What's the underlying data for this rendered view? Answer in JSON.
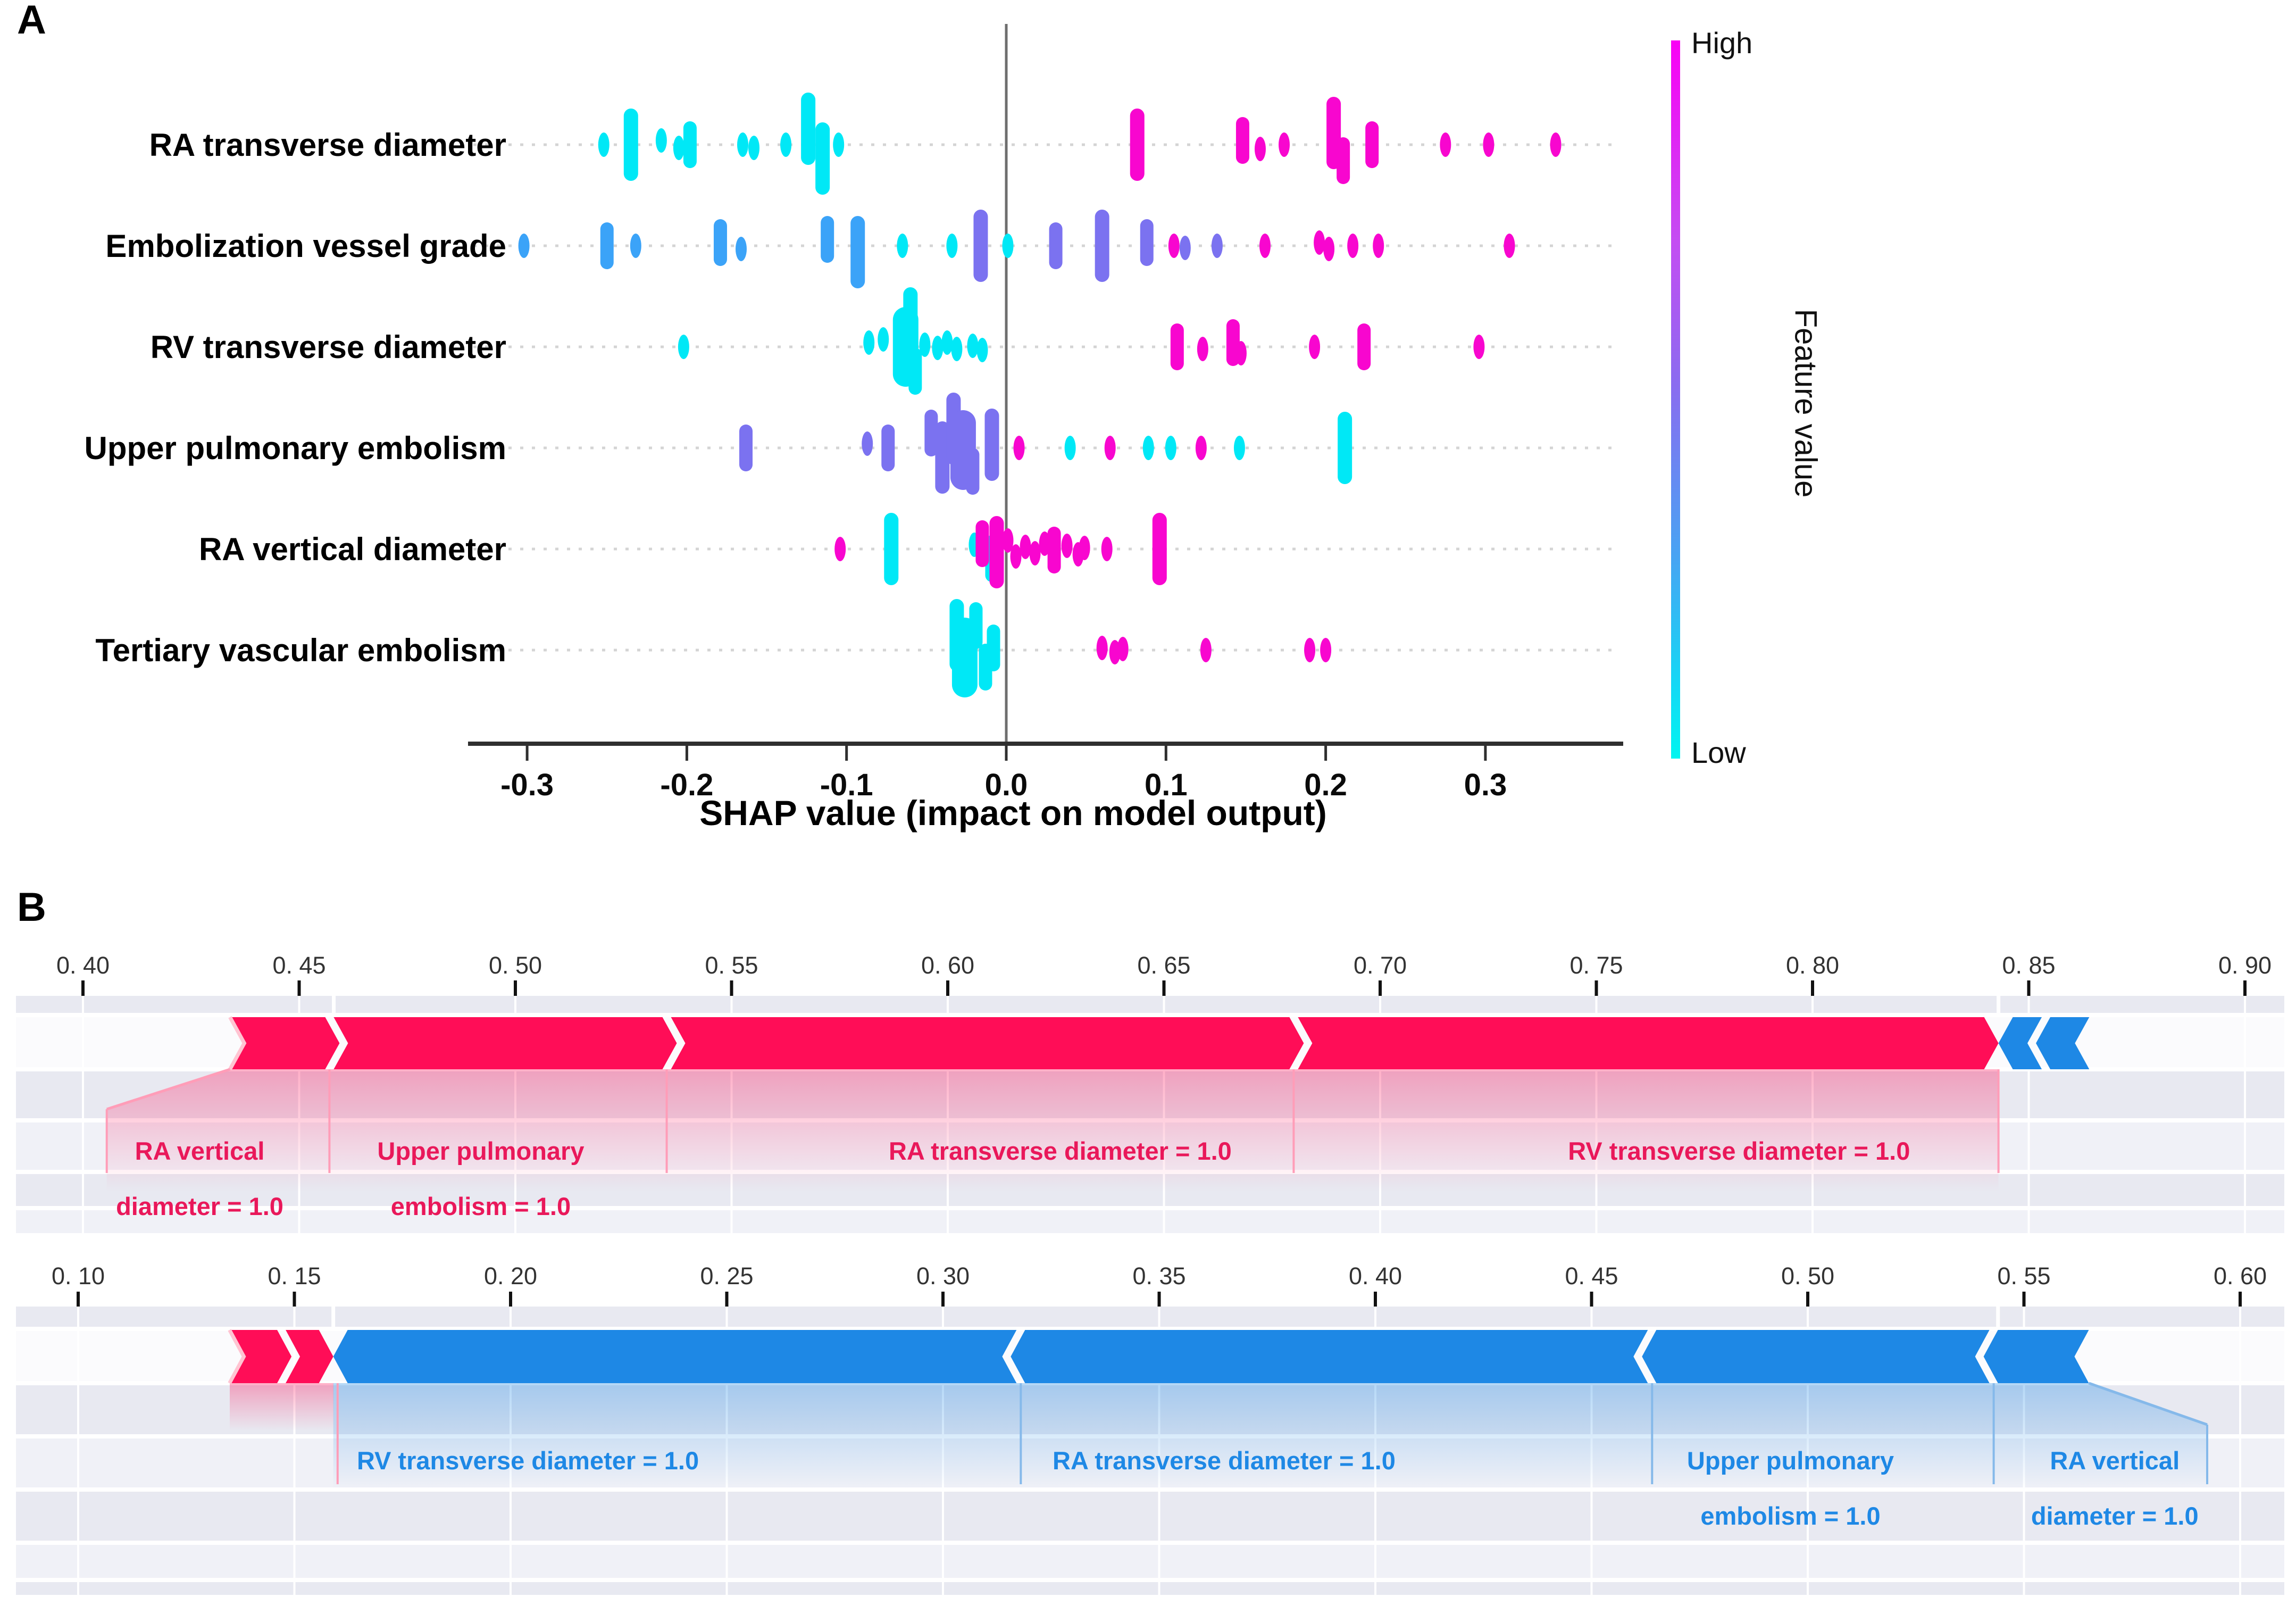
{
  "figure": {
    "panel_a_label": "A",
    "panel_b_label": "B"
  },
  "chart_data": [
    {
      "type": "scatter",
      "subtype": "shap-beeswarm-summary",
      "title": "",
      "xlabel": "SHAP value (impact on model output)",
      "ylabel": "",
      "xlim": [
        -0.35,
        0.39
      ],
      "grid": "dotted-row-lines",
      "x_ticks": [
        -0.3,
        -0.2,
        -0.1,
        0.0,
        0.1,
        0.2,
        0.3
      ],
      "x_tick_labels": [
        "-0.3",
        "-0.2",
        "-0.1",
        "0.0",
        "0.1",
        "0.2",
        "0.3"
      ],
      "features": [
        "RA transverse diameter",
        "Embolization vessel grade",
        "RV transverse diameter",
        "Upper pulmonary embolism",
        "RA vertical diameter",
        "Tertiary vascular embolism"
      ],
      "colorbar": {
        "label": "Feature value",
        "high": "High",
        "low": "Low",
        "position": "right"
      },
      "colors": {
        "cyan": "#00e8f6",
        "blue": "#3ba3f8",
        "purple": "#7b72f0",
        "magenta": "#f806cf"
      },
      "points_format": [
        "feature_index",
        "shap_value",
        "color",
        "size",
        "dy_jitter_px"
      ],
      "points": [
        [
          0,
          -0.252,
          "cyan",
          "s",
          0
        ],
        [
          0,
          -0.235,
          "cyan",
          "t",
          0
        ],
        [
          0,
          -0.216,
          "cyan",
          "s",
          -8
        ],
        [
          0,
          -0.205,
          "cyan",
          "s",
          6
        ],
        [
          0,
          -0.198,
          "cyan",
          "m",
          0
        ],
        [
          0,
          -0.165,
          "cyan",
          "s",
          0
        ],
        [
          0,
          -0.158,
          "cyan",
          "s",
          6
        ],
        [
          0,
          -0.138,
          "cyan",
          "s",
          0
        ],
        [
          0,
          -0.124,
          "cyan",
          "t",
          -30
        ],
        [
          0,
          -0.115,
          "cyan",
          "t",
          26
        ],
        [
          0,
          -0.105,
          "cyan",
          "s",
          0
        ],
        [
          0,
          0.082,
          "magenta",
          "t",
          0
        ],
        [
          0,
          0.148,
          "magenta",
          "m",
          -8
        ],
        [
          0,
          0.159,
          "magenta",
          "s",
          8
        ],
        [
          0,
          0.174,
          "magenta",
          "s",
          0
        ],
        [
          0,
          0.205,
          "magenta",
          "t",
          -22
        ],
        [
          0,
          0.211,
          "magenta",
          "m",
          30
        ],
        [
          0,
          0.229,
          "magenta",
          "m",
          0
        ],
        [
          0,
          0.275,
          "magenta",
          "s",
          0
        ],
        [
          0,
          0.302,
          "magenta",
          "s",
          0
        ],
        [
          0,
          0.344,
          "magenta",
          "s",
          0
        ],
        [
          1,
          -0.302,
          "blue",
          "s",
          0
        ],
        [
          1,
          -0.25,
          "blue",
          "m",
          0
        ],
        [
          1,
          -0.232,
          "blue",
          "s",
          0
        ],
        [
          1,
          -0.179,
          "blue",
          "m",
          -6
        ],
        [
          1,
          -0.166,
          "blue",
          "s",
          6
        ],
        [
          1,
          -0.112,
          "blue",
          "m",
          -12
        ],
        [
          1,
          -0.093,
          "blue",
          "t",
          12
        ],
        [
          1,
          -0.065,
          "cyan",
          "s",
          0
        ],
        [
          1,
          -0.034,
          "cyan",
          "s",
          0
        ],
        [
          1,
          0.001,
          "cyan",
          "s",
          0
        ],
        [
          1,
          -0.016,
          "purple",
          "t",
          0
        ],
        [
          1,
          0.031,
          "purple",
          "m",
          0
        ],
        [
          1,
          0.06,
          "purple",
          "t",
          0
        ],
        [
          1,
          0.088,
          "purple",
          "m",
          -6
        ],
        [
          1,
          0.112,
          "purple",
          "s",
          4
        ],
        [
          1,
          0.132,
          "purple",
          "s",
          0
        ],
        [
          1,
          0.105,
          "magenta",
          "s",
          0
        ],
        [
          1,
          0.162,
          "magenta",
          "s",
          0
        ],
        [
          1,
          0.196,
          "magenta",
          "s",
          -6
        ],
        [
          1,
          0.202,
          "magenta",
          "s",
          6
        ],
        [
          1,
          0.217,
          "magenta",
          "s",
          0
        ],
        [
          1,
          0.233,
          "magenta",
          "s",
          0
        ],
        [
          1,
          0.315,
          "magenta",
          "s",
          0
        ],
        [
          2,
          -0.202,
          "cyan",
          "s",
          0
        ],
        [
          2,
          -0.086,
          "cyan",
          "s",
          -8
        ],
        [
          2,
          -0.077,
          "cyan",
          "s",
          -14
        ],
        [
          2,
          -0.063,
          "cyan",
          "xl",
          0
        ],
        [
          2,
          -0.06,
          "cyan",
          "t",
          -44
        ],
        [
          2,
          -0.057,
          "cyan",
          "m",
          46
        ],
        [
          2,
          -0.051,
          "cyan",
          "s",
          -4
        ],
        [
          2,
          -0.043,
          "cyan",
          "s",
          2
        ],
        [
          2,
          -0.037,
          "cyan",
          "s",
          -8
        ],
        [
          2,
          -0.031,
          "cyan",
          "s",
          4
        ],
        [
          2,
          -0.021,
          "cyan",
          "s",
          -2
        ],
        [
          2,
          -0.015,
          "cyan",
          "s",
          6
        ],
        [
          2,
          0.107,
          "magenta",
          "m",
          0
        ],
        [
          2,
          0.123,
          "magenta",
          "s",
          4
        ],
        [
          2,
          0.142,
          "magenta",
          "m",
          -8
        ],
        [
          2,
          0.147,
          "magenta",
          "s",
          12
        ],
        [
          2,
          0.193,
          "magenta",
          "s",
          0
        ],
        [
          2,
          0.224,
          "magenta",
          "m",
          0
        ],
        [
          2,
          0.296,
          "magenta",
          "s",
          0
        ],
        [
          3,
          -0.163,
          "purple",
          "m",
          0
        ],
        [
          3,
          -0.087,
          "purple",
          "s",
          -8
        ],
        [
          3,
          -0.074,
          "purple",
          "m",
          0
        ],
        [
          3,
          -0.047,
          "purple",
          "m",
          -28
        ],
        [
          3,
          -0.04,
          "purple",
          "t",
          18
        ],
        [
          3,
          -0.033,
          "purple",
          "t",
          -36
        ],
        [
          3,
          -0.027,
          "purple",
          "xl",
          4
        ],
        [
          3,
          -0.021,
          "purple",
          "m",
          44
        ],
        [
          3,
          -0.009,
          "purple",
          "t",
          -6
        ],
        [
          3,
          0.008,
          "magenta",
          "s",
          0
        ],
        [
          3,
          0.065,
          "magenta",
          "s",
          0
        ],
        [
          3,
          0.122,
          "magenta",
          "s",
          0
        ],
        [
          3,
          0.04,
          "cyan",
          "s",
          0
        ],
        [
          3,
          0.089,
          "cyan",
          "s",
          0
        ],
        [
          3,
          0.103,
          "cyan",
          "s",
          0
        ],
        [
          3,
          0.146,
          "cyan",
          "s",
          0
        ],
        [
          3,
          0.212,
          "cyan",
          "t",
          0
        ],
        [
          4,
          -0.072,
          "cyan",
          "t",
          0
        ],
        [
          4,
          -0.02,
          "cyan",
          "s",
          -8
        ],
        [
          4,
          -0.009,
          "cyan",
          "m",
          18
        ],
        [
          4,
          -0.104,
          "magenta",
          "s",
          0
        ],
        [
          4,
          -0.015,
          "magenta",
          "m",
          -10
        ],
        [
          4,
          -0.006,
          "magenta",
          "t",
          6
        ],
        [
          4,
          0.001,
          "magenta",
          "s",
          -16
        ],
        [
          4,
          0.006,
          "magenta",
          "s",
          14
        ],
        [
          4,
          0.012,
          "magenta",
          "s",
          -4
        ],
        [
          4,
          0.018,
          "magenta",
          "s",
          8
        ],
        [
          4,
          0.024,
          "magenta",
          "s",
          -10
        ],
        [
          4,
          0.03,
          "magenta",
          "m",
          2
        ],
        [
          4,
          0.038,
          "magenta",
          "s",
          -6
        ],
        [
          4,
          0.045,
          "magenta",
          "s",
          10
        ],
        [
          4,
          0.049,
          "magenta",
          "s",
          -2
        ],
        [
          4,
          0.063,
          "magenta",
          "s",
          0
        ],
        [
          4,
          0.096,
          "magenta",
          "t",
          0
        ],
        [
          5,
          -0.031,
          "cyan",
          "t",
          -28
        ],
        [
          5,
          -0.026,
          "cyan",
          "xl",
          14
        ],
        [
          5,
          -0.019,
          "cyan",
          "m",
          -46
        ],
        [
          5,
          -0.013,
          "cyan",
          "m",
          32
        ],
        [
          5,
          -0.008,
          "cyan",
          "m",
          -4
        ],
        [
          5,
          0.06,
          "magenta",
          "s",
          -4
        ],
        [
          5,
          0.068,
          "magenta",
          "s",
          4
        ],
        [
          5,
          0.073,
          "magenta",
          "s",
          -2
        ],
        [
          5,
          0.125,
          "magenta",
          "s",
          0
        ],
        [
          5,
          0.19,
          "magenta",
          "s",
          0
        ],
        [
          5,
          0.2,
          "magenta",
          "s",
          0
        ]
      ]
    },
    {
      "type": "area",
      "subtype": "shap-force-plot",
      "axis_range": [
        0.4,
        0.9
      ],
      "tick_values": [
        0.4,
        0.45,
        0.5,
        0.55,
        0.6,
        0.65,
        0.7,
        0.75,
        0.8,
        0.85,
        0.9
      ],
      "tick_labels": [
        "0. 40",
        "0. 45",
        "0. 50",
        "0. 55",
        "0. 60",
        "0. 65",
        "0. 70",
        "0. 75",
        "0. 80",
        "0. 85",
        "0. 90"
      ],
      "base_value": 0.458,
      "output_value": 0.843,
      "increase_color": "#ff0d57",
      "decrease_color": "#1e88e5",
      "segments": [
        {
          "feature": "RA vertical diameter = 1.0",
          "from": 0.434,
          "to": 0.457,
          "color": "red"
        },
        {
          "feature": "Upper pulmonary embolism = 1.0",
          "from": 0.457,
          "to": 0.535,
          "color": "red"
        },
        {
          "feature": "RA transverse diameter = 1.0",
          "from": 0.535,
          "to": 0.68,
          "color": "red"
        },
        {
          "feature": "RV transverse diameter = 1.0",
          "from": 0.68,
          "to": 0.843,
          "color": "red"
        },
        {
          "feature": "",
          "from": 0.843,
          "to": 0.854,
          "color": "blue"
        },
        {
          "feature": "",
          "from": 0.854,
          "to": 0.864,
          "color": "blue"
        }
      ],
      "labels": [
        {
          "v": 0.427,
          "lines": [
            "RA vertical",
            "diameter = 1.0"
          ],
          "color": "red"
        },
        {
          "v": 0.492,
          "lines": [
            "Upper pulmonary",
            "embolism = 1.0"
          ],
          "color": "red"
        },
        {
          "v": 0.626,
          "lines": [
            "RA transverse diameter = 1.0"
          ],
          "color": "red"
        },
        {
          "v": 0.783,
          "lines": [
            "RV transverse diameter = 1.0"
          ],
          "color": "red"
        }
      ]
    },
    {
      "type": "area",
      "subtype": "shap-force-plot",
      "axis_range": [
        0.1,
        0.6
      ],
      "tick_values": [
        0.1,
        0.15,
        0.2,
        0.25,
        0.3,
        0.35,
        0.4,
        0.45,
        0.5,
        0.55,
        0.6
      ],
      "tick_labels": [
        "0. 10",
        "0. 15",
        "0. 20",
        "0. 25",
        "0. 30",
        "0. 35",
        "0. 40",
        "0. 45",
        "0. 50",
        "0. 55",
        "0. 60"
      ],
      "base_value": 0.544,
      "output_value": 0.159,
      "increase_color": "#ff0d57",
      "decrease_color": "#1e88e5",
      "segments": [
        {
          "feature": "",
          "from": 0.135,
          "to": 0.147,
          "color": "red"
        },
        {
          "feature": "",
          "from": 0.147,
          "to": 0.159,
          "color": "red"
        },
        {
          "feature": "RV transverse diameter = 1.0",
          "from": 0.159,
          "to": 0.318,
          "color": "blue"
        },
        {
          "feature": "RA transverse diameter = 1.0",
          "from": 0.318,
          "to": 0.464,
          "color": "blue"
        },
        {
          "feature": "Upper pulmonary embolism = 1.0",
          "from": 0.464,
          "to": 0.543,
          "color": "blue"
        },
        {
          "feature": "RA vertical diameter = 1.0",
          "from": 0.543,
          "to": 0.565,
          "color": "blue"
        }
      ],
      "labels": [
        {
          "v": 0.204,
          "lines": [
            "RV transverse diameter = 1.0"
          ],
          "color": "blue"
        },
        {
          "v": 0.365,
          "lines": [
            "RA transverse diameter = 1.0"
          ],
          "color": "blue"
        },
        {
          "v": 0.496,
          "lines": [
            "Upper pulmonary",
            "embolism = 1.0"
          ],
          "color": "blue"
        },
        {
          "v": 0.571,
          "lines": [
            "RA vertical",
            "diameter = 1.0"
          ],
          "color": "blue"
        }
      ]
    }
  ]
}
